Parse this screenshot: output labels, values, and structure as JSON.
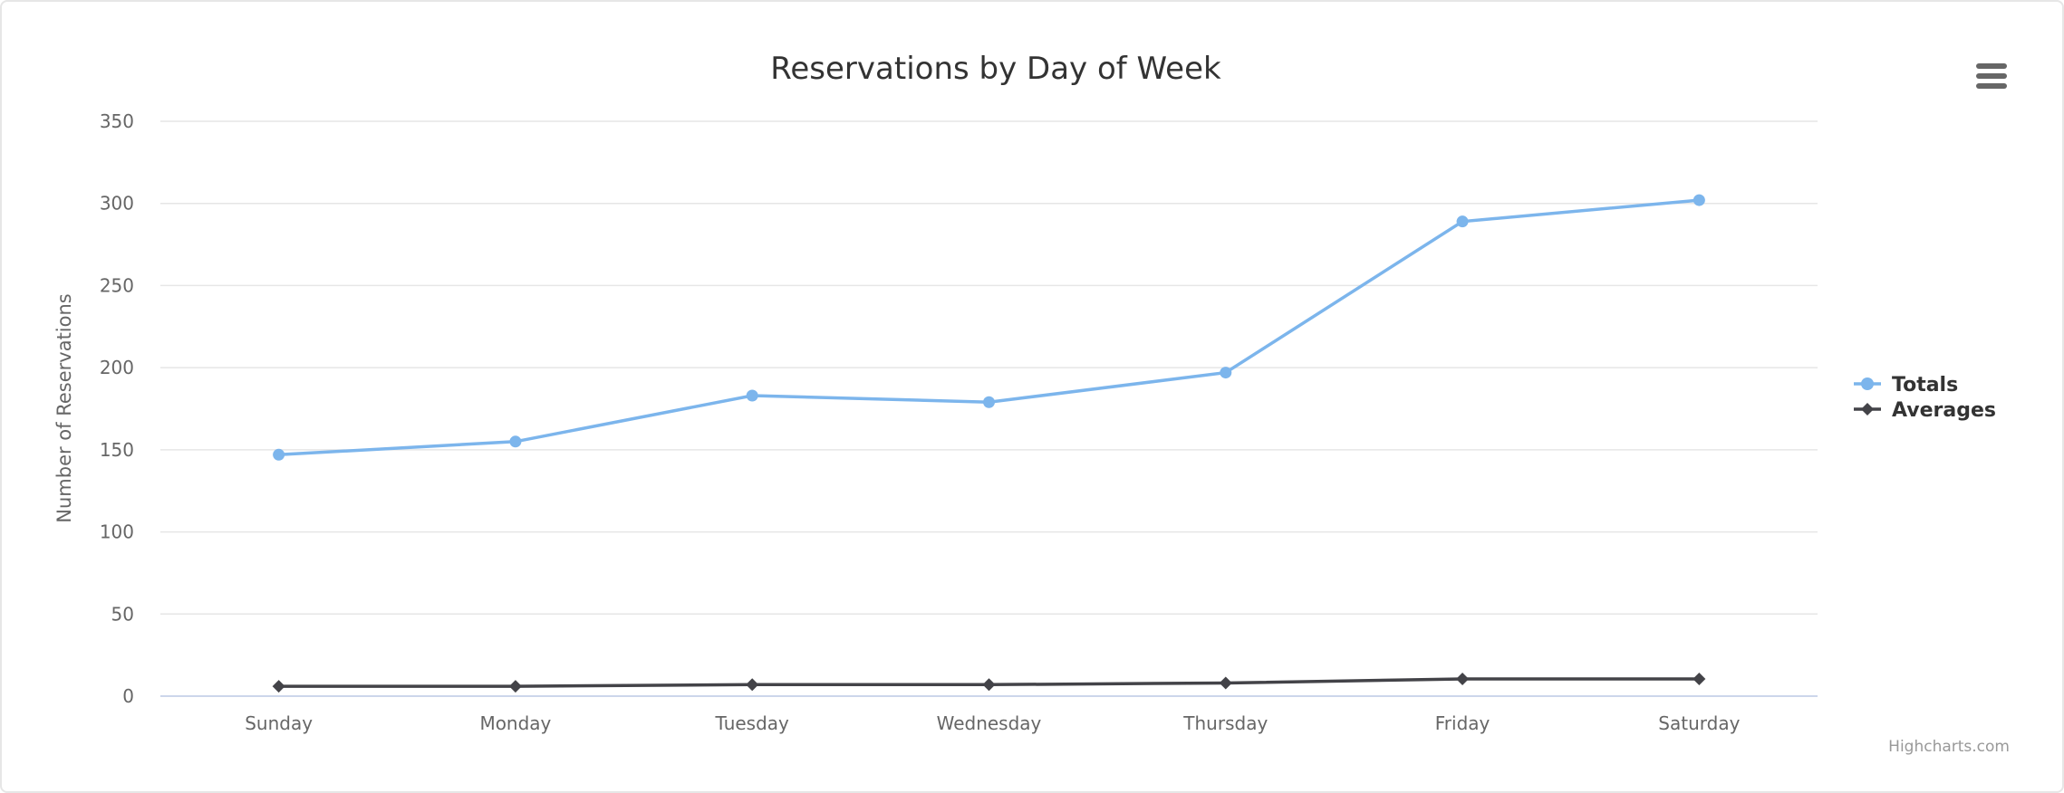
{
  "chart_data": {
    "type": "line",
    "title": "Reservations by Day of Week",
    "ylabel": "Number of Reservations",
    "xlabel": "",
    "categories": [
      "Sunday",
      "Monday",
      "Tuesday",
      "Wednesday",
      "Thursday",
      "Friday",
      "Saturday"
    ],
    "ylim": [
      0,
      350
    ],
    "yticks": [
      0,
      50,
      100,
      150,
      200,
      250,
      300,
      350
    ],
    "grid": true,
    "legend_position": "right",
    "series": [
      {
        "name": "Totals",
        "color": "#7cb5ec",
        "marker": "circle",
        "values": [
          147,
          155,
          183,
          179,
          197,
          289,
          302
        ]
      },
      {
        "name": "Averages",
        "color": "#434348",
        "marker": "diamond",
        "values": [
          6,
          6,
          7,
          7,
          8,
          10.5,
          10.5
        ]
      }
    ]
  },
  "credits": "Highcharts.com",
  "menu_icon": "hamburger-menu-icon"
}
